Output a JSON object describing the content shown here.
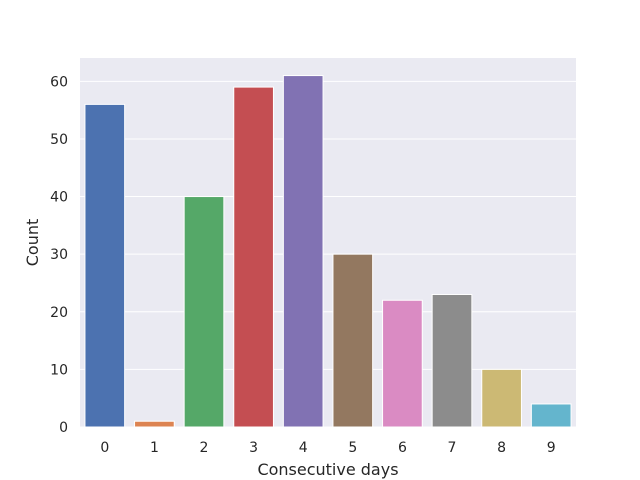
{
  "chart_data": {
    "type": "bar",
    "title": "",
    "xlabel": "Consecutive days",
    "ylabel": "Count",
    "categories": [
      "0",
      "1",
      "2",
      "3",
      "4",
      "5",
      "6",
      "7",
      "8",
      "9"
    ],
    "values": [
      56,
      1,
      40,
      59,
      61,
      30,
      22,
      23,
      10,
      4
    ],
    "ylim": [
      0,
      64.05
    ],
    "yticks": [
      0,
      10,
      20,
      30,
      40,
      50,
      60
    ],
    "grid": true,
    "legend": "none",
    "colors": [
      "#4c72b0",
      "#dd8452",
      "#55a868",
      "#c44e52",
      "#8172b3",
      "#937860",
      "#da8bc3",
      "#8c8c8c",
      "#ccb974",
      "#64b5cd"
    ],
    "background": "#eaeaf2",
    "grid_color": "#ffffff"
  }
}
